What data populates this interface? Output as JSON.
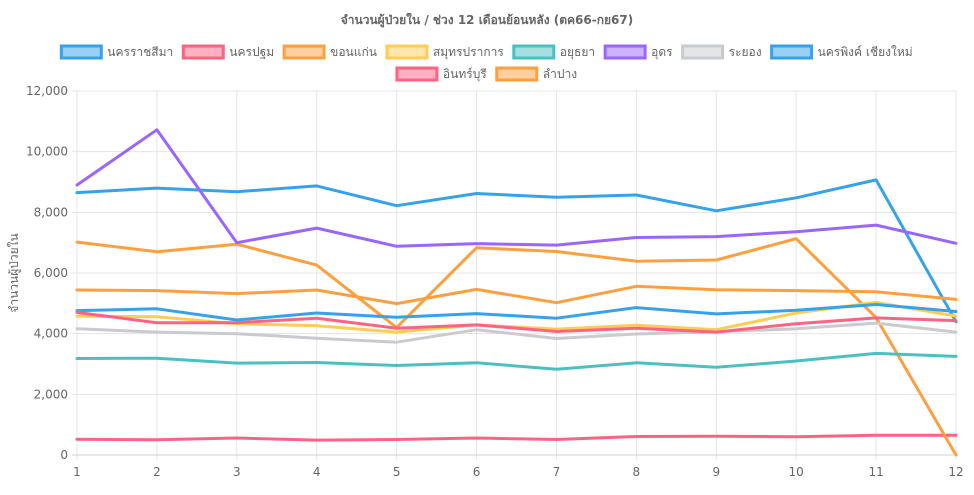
{
  "chart_data": {
    "type": "line",
    "title": "จำนวนผู้ป่วยใน / ช่วง 12 เดือนย้อนหลัง (ตค66-กย67)",
    "xlabel": "",
    "ylabel": "จำนวนผู้ป่วยใน",
    "categories": [
      "1",
      "2",
      "3",
      "4",
      "5",
      "6",
      "7",
      "8",
      "9",
      "10",
      "11",
      "12"
    ],
    "ylim": [
      0,
      12000
    ],
    "yticks": [
      "0",
      "2,000",
      "4,000",
      "6,000",
      "8,000",
      "10,000",
      "12,000"
    ],
    "grid": true,
    "legend_position": "top",
    "series": [
      {
        "name": "นครราชสีมา",
        "color": "#36a2eb",
        "values": [
          8650,
          8800,
          8680,
          8870,
          8220,
          8620,
          8500,
          8570,
          8050,
          8480,
          9070,
          4390
        ]
      },
      {
        "name": "นครปฐม",
        "color": "#ff6384",
        "values": [
          520,
          500,
          560,
          490,
          510,
          560,
          510,
          610,
          620,
          600,
          650,
          650
        ]
      },
      {
        "name": "ขอนแก่น",
        "color": "#ff9f40",
        "values": [
          7020,
          6700,
          6950,
          6260,
          4200,
          6830,
          6710,
          6390,
          6430,
          7130,
          4530,
          0
        ]
      },
      {
        "name": "สมุทรปราการ",
        "color": "#ffcd56",
        "values": [
          4580,
          4560,
          4330,
          4260,
          4050,
          4290,
          4150,
          4280,
          4130,
          4680,
          5030,
          4580
        ]
      },
      {
        "name": "อยุธยา",
        "color": "#4bc0c0",
        "values": [
          3180,
          3190,
          3030,
          3050,
          2950,
          3040,
          2830,
          3040,
          2890,
          3100,
          3350,
          3250
        ]
      },
      {
        "name": "อุดร",
        "color": "#9966ff",
        "values": [
          8900,
          10720,
          7000,
          7480,
          6880,
          6970,
          6920,
          7170,
          7200,
          7360,
          7580,
          6980
        ]
      },
      {
        "name": "ระยอง",
        "color": "#c9cbcf",
        "values": [
          4160,
          4050,
          4000,
          3850,
          3720,
          4130,
          3840,
          3990,
          4060,
          4160,
          4350,
          4050
        ]
      },
      {
        "name": "นครพิงค์ เชียงใหม่",
        "color": "#36a2eb",
        "values": [
          4760,
          4820,
          4450,
          4680,
          4540,
          4660,
          4510,
          4860,
          4650,
          4770,
          4960,
          4730
        ]
      },
      {
        "name": "อินทร์บุรี",
        "color": "#ff6384",
        "values": [
          4700,
          4360,
          4360,
          4510,
          4180,
          4290,
          4070,
          4180,
          4050,
          4330,
          4520,
          4430
        ]
      },
      {
        "name": "ลำปาง",
        "color": "#ff9f40",
        "values": [
          5440,
          5420,
          5320,
          5440,
          4990,
          5460,
          5020,
          5560,
          5450,
          5420,
          5380,
          5130
        ]
      }
    ]
  }
}
